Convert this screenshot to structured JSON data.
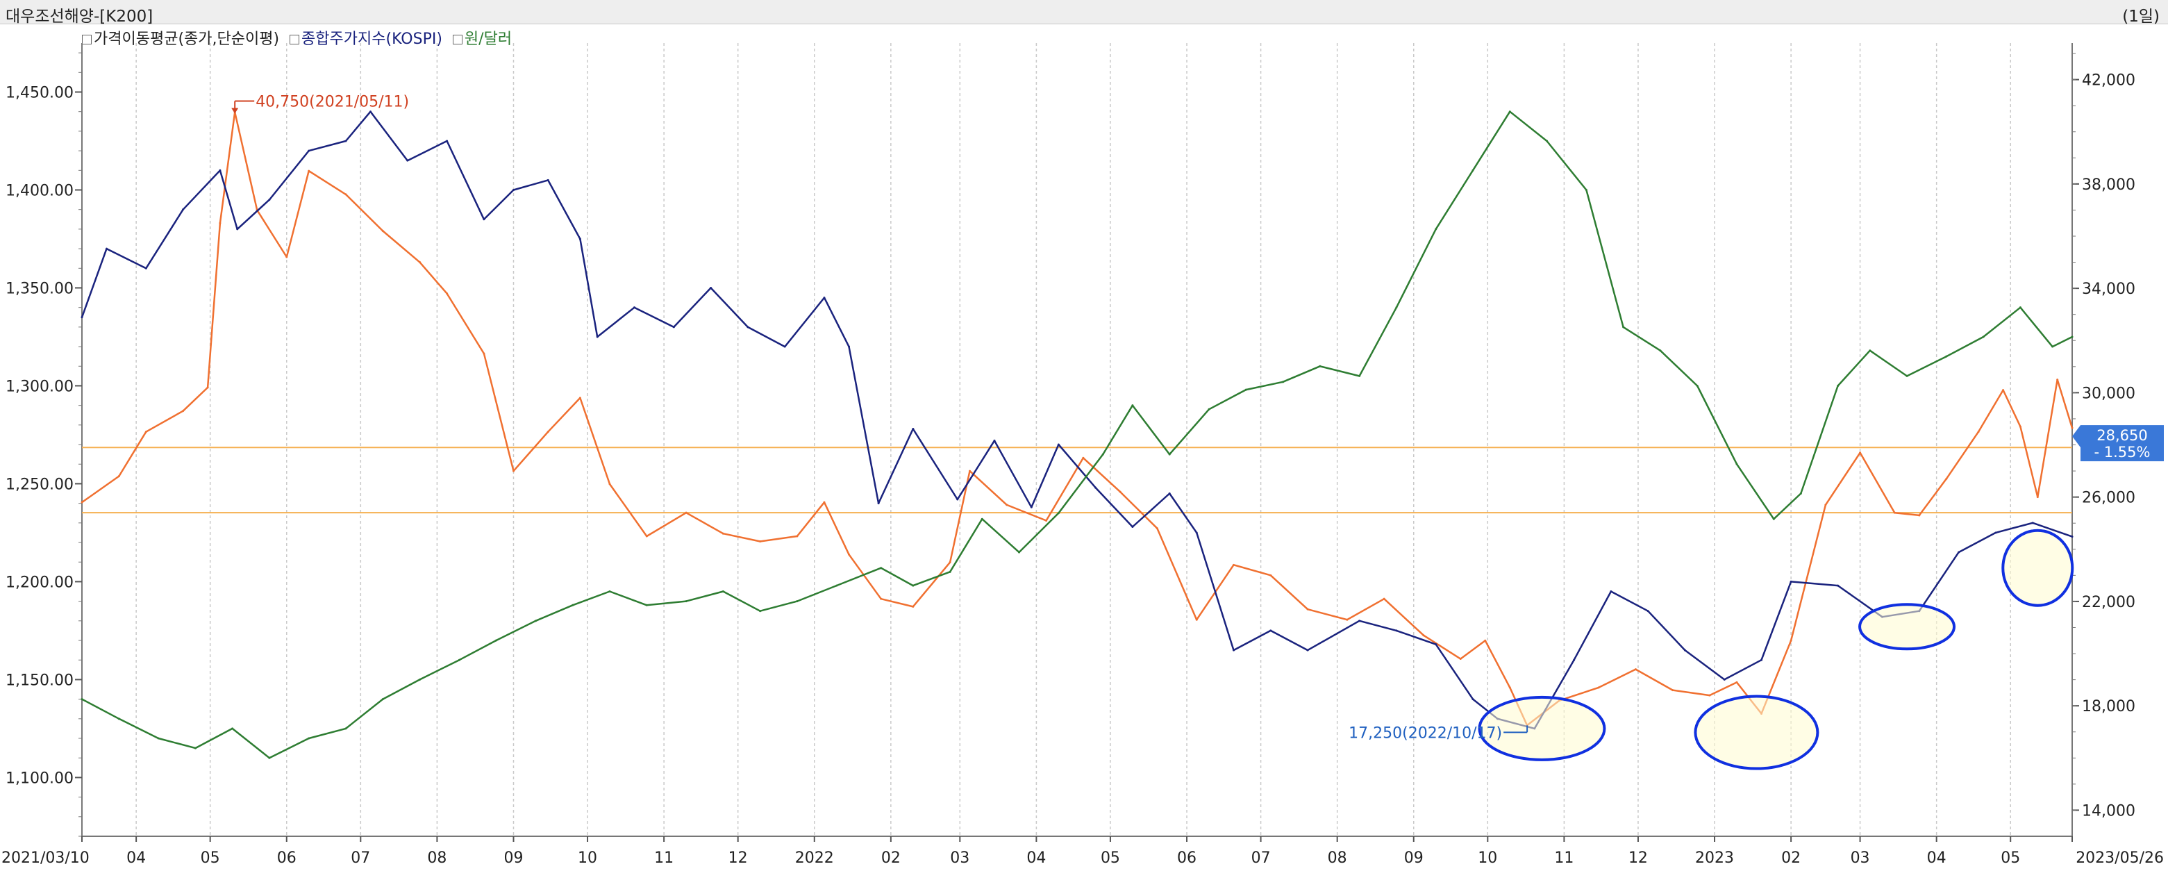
{
  "window": {
    "title": "대우조선해양-[K200]",
    "period": "(1일)"
  },
  "legend": [
    {
      "label": "가격이동평균(종가,단순이평)",
      "color": "#222222"
    },
    {
      "label": "종합주가지수(KOSPI)",
      "color": "#1a237e"
    },
    {
      "label": "원/달러",
      "color": "#2e7d32"
    }
  ],
  "chart_data": {
    "type": "line",
    "x_labels": [
      "2021/03/10",
      "04",
      "05",
      "06",
      "07",
      "08",
      "09",
      "10",
      "11",
      "12",
      "2022",
      "02",
      "03",
      "04",
      "05",
      "06",
      "07",
      "08",
      "09",
      "10",
      "11",
      "12",
      "2023",
      "02",
      "03",
      "04",
      "05",
      "2023/05/26"
    ],
    "left_axis": {
      "ticks": [
        "1,100.00",
        "1,150.00",
        "1,200.00",
        "1,250.00",
        "1,300.00",
        "1,350.00",
        "1,400.00",
        "1,450.00"
      ],
      "range": [
        1070,
        1475
      ]
    },
    "right_axis": {
      "ticks": [
        "14,000",
        "18,000",
        "22,000",
        "26,000",
        "30,000",
        "34,000",
        "38,000",
        "42,000"
      ],
      "range": [
        13000,
        43400
      ]
    },
    "series": [
      {
        "name": "가격이동평균(종가,단순이평)",
        "color": "#f07030",
        "axis": "right",
        "points": [
          [
            "2021/03/10",
            25800
          ],
          [
            "2021/03/25",
            26800
          ],
          [
            "2021/04/05",
            28500
          ],
          [
            "2021/04/20",
            29300
          ],
          [
            "2021/04/30",
            30200
          ],
          [
            "2021/05/05",
            36500
          ],
          [
            "2021/05/11",
            40750
          ],
          [
            "2021/05/20",
            37000
          ],
          [
            "2021/06/01",
            35200
          ],
          [
            "2021/06/10",
            38500
          ],
          [
            "2021/06/25",
            37600
          ],
          [
            "2021/07/10",
            36200
          ],
          [
            "2021/07/25",
            35000
          ],
          [
            "2021/08/05",
            33800
          ],
          [
            "2021/08/20",
            31500
          ],
          [
            "2021/09/01",
            27000
          ],
          [
            "2021/09/15",
            28500
          ],
          [
            "2021/09/28",
            29800
          ],
          [
            "2021/10/10",
            26500
          ],
          [
            "2021/10/25",
            24500
          ],
          [
            "2021/11/10",
            25400
          ],
          [
            "2021/11/25",
            24600
          ],
          [
            "2021/12/10",
            24300
          ],
          [
            "2021/12/25",
            24500
          ],
          [
            "2022/01/05",
            25800
          ],
          [
            "2022/01/15",
            23800
          ],
          [
            "2022/01/28",
            22100
          ],
          [
            "2022/02/10",
            21800
          ],
          [
            "2022/02/25",
            23500
          ],
          [
            "2022/03/05",
            27000
          ],
          [
            "2022/03/20",
            25700
          ],
          [
            "2022/04/05",
            25100
          ],
          [
            "2022/04/20",
            27500
          ],
          [
            "2022/05/05",
            26200
          ],
          [
            "2022/05/20",
            24800
          ],
          [
            "2022/06/05",
            21300
          ],
          [
            "2022/06/20",
            23400
          ],
          [
            "2022/07/05",
            23000
          ],
          [
            "2022/07/20",
            21700
          ],
          [
            "2022/08/05",
            21300
          ],
          [
            "2022/08/20",
            22100
          ],
          [
            "2022/09/05",
            20700
          ],
          [
            "2022/09/20",
            19800
          ],
          [
            "2022/09/30",
            20500
          ],
          [
            "2022/10/10",
            18700
          ],
          [
            "2022/10/17",
            17250
          ],
          [
            "2022/10/30",
            18200
          ],
          [
            "2022/11/15",
            18700
          ],
          [
            "2022/11/30",
            19400
          ],
          [
            "2022/12/15",
            18600
          ],
          [
            "2022/12/30",
            18400
          ],
          [
            "2023/01/10",
            18900
          ],
          [
            "2023/01/20",
            17700
          ],
          [
            "2023/02/01",
            20500
          ],
          [
            "2023/02/15",
            25700
          ],
          [
            "2023/03/01",
            27700
          ],
          [
            "2023/03/15",
            25400
          ],
          [
            "2023/03/25",
            25300
          ],
          [
            "2023/04/05",
            26700
          ],
          [
            "2023/04/18",
            28500
          ],
          [
            "2023/04/28",
            30100
          ],
          [
            "2023/05/05",
            28700
          ],
          [
            "2023/05/12",
            26000
          ],
          [
            "2023/05/20",
            30500
          ],
          [
            "2023/05/26",
            28650
          ]
        ]
      },
      {
        "name": "종합주가지수(KOSPI)",
        "color": "#1a237e",
        "axis": "left",
        "points": [
          [
            "2021/03/10",
            1335
          ],
          [
            "2021/03/20",
            1370
          ],
          [
            "2021/04/05",
            1360
          ],
          [
            "2021/04/20",
            1390
          ],
          [
            "2021/05/05",
            1410
          ],
          [
            "2021/05/12",
            1380
          ],
          [
            "2021/05/25",
            1395
          ],
          [
            "2021/06/10",
            1420
          ],
          [
            "2021/06/25",
            1425
          ],
          [
            "2021/07/05",
            1440
          ],
          [
            "2021/07/20",
            1415
          ],
          [
            "2021/08/05",
            1425
          ],
          [
            "2021/08/20",
            1385
          ],
          [
            "2021/09/01",
            1400
          ],
          [
            "2021/09/15",
            1405
          ],
          [
            "2021/09/28",
            1375
          ],
          [
            "2021/10/05",
            1325
          ],
          [
            "2021/10/20",
            1340
          ],
          [
            "2021/11/05",
            1330
          ],
          [
            "2021/11/20",
            1350
          ],
          [
            "2021/12/05",
            1330
          ],
          [
            "2021/12/20",
            1320
          ],
          [
            "2022/01/05",
            1345
          ],
          [
            "2022/01/15",
            1320
          ],
          [
            "2022/01/27",
            1240
          ],
          [
            "2022/02/10",
            1278
          ],
          [
            "2022/02/28",
            1242
          ],
          [
            "2022/03/15",
            1272
          ],
          [
            "2022/03/30",
            1238
          ],
          [
            "2022/04/10",
            1270
          ],
          [
            "2022/04/25",
            1248
          ],
          [
            "2022/05/10",
            1228
          ],
          [
            "2022/05/25",
            1245
          ],
          [
            "2022/06/05",
            1225
          ],
          [
            "2022/06/20",
            1165
          ],
          [
            "2022/07/05",
            1175
          ],
          [
            "2022/07/20",
            1165
          ],
          [
            "2022/08/10",
            1180
          ],
          [
            "2022/08/25",
            1175
          ],
          [
            "2022/09/10",
            1168
          ],
          [
            "2022/09/25",
            1140
          ],
          [
            "2022/10/05",
            1130
          ],
          [
            "2022/10/20",
            1125
          ],
          [
            "2022/11/05",
            1160
          ],
          [
            "2022/11/20",
            1195
          ],
          [
            "2022/12/05",
            1185
          ],
          [
            "2022/12/20",
            1165
          ],
          [
            "2023/01/05",
            1150
          ],
          [
            "2023/01/20",
            1160
          ],
          [
            "2023/02/01",
            1200
          ],
          [
            "2023/02/20",
            1198
          ],
          [
            "2023/03/10",
            1182
          ],
          [
            "2023/03/25",
            1185
          ],
          [
            "2023/04/10",
            1215
          ],
          [
            "2023/04/25",
            1225
          ],
          [
            "2023/05/10",
            1230
          ],
          [
            "2023/05/26",
            1223
          ]
        ]
      },
      {
        "name": "원/달러",
        "color": "#2e7d32",
        "axis": "left",
        "points": [
          [
            "2021/03/10",
            1140
          ],
          [
            "2021/03/25",
            1130
          ],
          [
            "2021/04/10",
            1120
          ],
          [
            "2021/04/25",
            1115
          ],
          [
            "2021/05/10",
            1125
          ],
          [
            "2021/05/25",
            1110
          ],
          [
            "2021/06/10",
            1120
          ],
          [
            "2021/06/25",
            1125
          ],
          [
            "2021/07/10",
            1140
          ],
          [
            "2021/07/25",
            1150
          ],
          [
            "2021/08/10",
            1160
          ],
          [
            "2021/08/25",
            1170
          ],
          [
            "2021/09/10",
            1180
          ],
          [
            "2021/09/25",
            1188
          ],
          [
            "2021/10/10",
            1195
          ],
          [
            "2021/10/25",
            1188
          ],
          [
            "2021/11/10",
            1190
          ],
          [
            "2021/11/25",
            1195
          ],
          [
            "2021/12/10",
            1185
          ],
          [
            "2021/12/25",
            1190
          ],
          [
            "2022/01/10",
            1198
          ],
          [
            "2022/01/28",
            1207
          ],
          [
            "2022/02/10",
            1198
          ],
          [
            "2022/02/25",
            1205
          ],
          [
            "2022/03/10",
            1232
          ],
          [
            "2022/03/25",
            1215
          ],
          [
            "2022/04/10",
            1235
          ],
          [
            "2022/04/28",
            1265
          ],
          [
            "2022/05/10",
            1290
          ],
          [
            "2022/05/25",
            1265
          ],
          [
            "2022/06/10",
            1288
          ],
          [
            "2022/06/25",
            1298
          ],
          [
            "2022/07/10",
            1302
          ],
          [
            "2022/07/25",
            1310
          ],
          [
            "2022/08/10",
            1305
          ],
          [
            "2022/08/25",
            1340
          ],
          [
            "2022/09/10",
            1380
          ],
          [
            "2022/09/25",
            1410
          ],
          [
            "2022/10/10",
            1440
          ],
          [
            "2022/10/25",
            1425
          ],
          [
            "2022/11/10",
            1400
          ],
          [
            "2022/11/25",
            1330
          ],
          [
            "2022/12/10",
            1318
          ],
          [
            "2022/12/25",
            1300
          ],
          [
            "2023/01/10",
            1260
          ],
          [
            "2023/01/25",
            1232
          ],
          [
            "2023/02/05",
            1245
          ],
          [
            "2023/02/20",
            1300
          ],
          [
            "2023/03/05",
            1318
          ],
          [
            "2023/03/20",
            1305
          ],
          [
            "2023/04/05",
            1315
          ],
          [
            "2023/04/20",
            1325
          ],
          [
            "2023/05/05",
            1340
          ],
          [
            "2023/05/18",
            1320
          ],
          [
            "2023/05/26",
            1325
          ]
        ]
      }
    ],
    "reference_lines": [
      {
        "axis": "right",
        "value": 27900,
        "color": "#f5b050"
      },
      {
        "axis": "right",
        "value": 25400,
        "color": "#f5b050"
      }
    ],
    "annotations": [
      {
        "text": "40,750(2021/05/11)",
        "date": "2021/05/11",
        "value": 40750,
        "color": "#d04020",
        "kind": "high"
      },
      {
        "text": "17,250(2022/10/17)",
        "date": "2022/10/17",
        "value": 17250,
        "color": "#2060c0",
        "kind": "low"
      }
    ],
    "current_price": {
      "value": "28,650",
      "change": "- 1.55%"
    },
    "highlight_ellipses": [
      {
        "center_date": "2022/10/23",
        "center_value": 1125,
        "axis": "left"
      },
      {
        "center_date": "2023/01/18",
        "center_value": 1123,
        "axis": "left"
      },
      {
        "center_date": "2023/03/20",
        "center_value": 1177,
        "axis": "left"
      },
      {
        "center_date": "2023/05/12",
        "center_value": 1207,
        "axis": "left"
      }
    ]
  }
}
